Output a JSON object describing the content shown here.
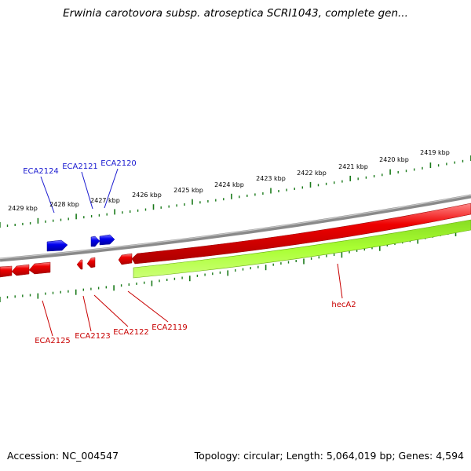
{
  "title": "Erwinia carotovora subsp. atroseptica SCRI1043, complete gen...",
  "footer": {
    "accession": "Accession: NC_004547",
    "summary": "Topology: circular; Length: 5,064,019 bp; Genes: 4,594"
  },
  "colors": {
    "forward_gene": "#0000ee",
    "reverse_gene": "#ee0000",
    "backbone": "#8a8a8a",
    "ruler_ticks": "#1a7a1a",
    "feature_band": "#99ee22",
    "label_blue": "#1a1ad0",
    "label_red": "#c80000"
  },
  "ruler_labels": [
    "2419 kbp",
    "2420 kbp",
    "2421 kbp",
    "2422 kbp",
    "2423 kbp",
    "2424 kbp",
    "2425 kbp",
    "2426 kbp",
    "2427 kbp",
    "2428 kbp",
    "2429 kbp"
  ],
  "forward_gene_labels": [
    "ECA2124",
    "ECA2121",
    "ECA2120"
  ],
  "reverse_gene_labels": [
    "ECA2125",
    "ECA2123",
    "ECA2122",
    "ECA2119",
    "hecA2"
  ]
}
